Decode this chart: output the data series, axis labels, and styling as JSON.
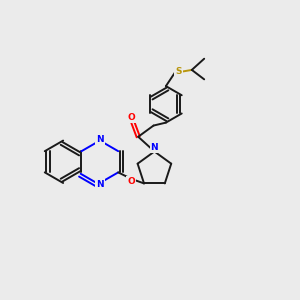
{
  "background_color": "#ebebeb",
  "bond_color": "#1a1a1a",
  "nitrogen_color": "#0000ff",
  "oxygen_color": "#ff0000",
  "sulfur_color": "#b8960c",
  "figsize": [
    3.0,
    3.0
  ],
  "dpi": 100,
  "lw": 1.4,
  "xlim": [
    0,
    10
  ],
  "ylim": [
    0,
    10
  ]
}
